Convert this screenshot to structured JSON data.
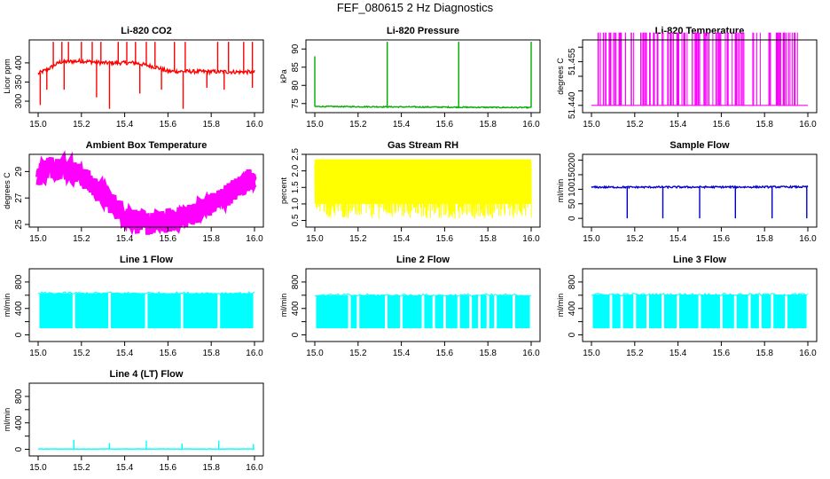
{
  "figure": {
    "title": "FEF_080615  2 Hz Diagnostics"
  },
  "chart_data": [
    {
      "id": "p1",
      "type": "line",
      "title": "Li-820 CO2",
      "ylabel": "Licor ppm",
      "color": "#ff0000",
      "xlim": [
        15.0,
        16.0
      ],
      "ylim": [
        270,
        460
      ],
      "xticks": [
        15.0,
        15.2,
        15.4,
        15.6,
        15.8,
        16.0
      ],
      "xtick_labels": [
        "15.0",
        "15.2",
        "15.4",
        "15.6",
        "15.8",
        "16.0"
      ],
      "yticks": [
        300,
        350,
        400
      ],
      "ytick_labels": [
        "300",
        "350",
        "400"
      ],
      "series": [
        {
          "name": "CO2",
          "baseline": 372,
          "noise": 5,
          "segments": [
            [
              15.0,
              372
            ],
            [
              15.05,
              385
            ],
            [
              15.1,
              402
            ],
            [
              15.2,
              405
            ],
            [
              15.3,
              400
            ],
            [
              15.45,
              400
            ],
            [
              15.55,
              388
            ],
            [
              15.6,
              378
            ],
            [
              15.62,
              378
            ],
            [
              16.0,
              376
            ]
          ],
          "spikes": [
            [
              15.07,
              455
            ],
            [
              15.11,
              455
            ],
            [
              15.14,
              455
            ],
            [
              15.2,
              455
            ],
            [
              15.25,
              455
            ],
            [
              15.29,
              455
            ],
            [
              15.37,
              455
            ],
            [
              15.41,
              455
            ],
            [
              15.45,
              455
            ],
            [
              15.5,
              455
            ],
            [
              15.54,
              455
            ],
            [
              15.63,
              455
            ],
            [
              15.68,
              455
            ],
            [
              15.83,
              455
            ],
            [
              15.88,
              455
            ],
            [
              15.95,
              455
            ],
            [
              15.99,
              455
            ],
            [
              15.01,
              290
            ],
            [
              15.04,
              330
            ],
            [
              15.12,
              330
            ],
            [
              15.27,
              310
            ],
            [
              15.33,
              280
            ],
            [
              15.47,
              320
            ],
            [
              15.57,
              330
            ],
            [
              15.67,
              280
            ],
            [
              15.78,
              335
            ],
            [
              15.86,
              330
            ],
            [
              15.99,
              335
            ]
          ]
        }
      ]
    },
    {
      "id": "p2",
      "type": "line",
      "title": "Li-820 Pressure",
      "ylabel": "kPa",
      "color": "#00aa00",
      "xlim": [
        15.0,
        16.0
      ],
      "ylim": [
        72.5,
        92.5
      ],
      "xticks": [
        15.0,
        15.2,
        15.4,
        15.6,
        15.8,
        16.0
      ],
      "xtick_labels": [
        "15.0",
        "15.2",
        "15.4",
        "15.6",
        "15.8",
        "16.0"
      ],
      "yticks": [
        75,
        80,
        85,
        90
      ],
      "ytick_labels": [
        "75",
        "80",
        "85",
        "90"
      ],
      "series": [
        {
          "name": "Pressure",
          "baseline": 74.1,
          "noise": 0.15,
          "segments": [
            [
              15.0,
              74.2
            ],
            [
              16.0,
              73.9
            ]
          ],
          "spikes": [
            [
              15.0,
              88
            ],
            [
              15.335,
              92
            ],
            [
              15.665,
              92
            ],
            [
              16.0,
              92
            ]
          ]
        }
      ]
    },
    {
      "id": "p3",
      "type": "line",
      "title": "Li-820 Temperature",
      "ylabel": "degrees C",
      "color": "#ff00ff",
      "xlim": [
        15.0,
        16.0
      ],
      "ylim": [
        51.4375,
        51.4625
      ],
      "xticks": [
        15.0,
        15.2,
        15.4,
        15.6,
        15.8,
        16.0
      ],
      "xtick_labels": [
        "15.0",
        "15.2",
        "15.4",
        "15.6",
        "15.8",
        "16.0"
      ],
      "yticks": [
        51.44,
        51.445,
        51.45,
        51.455,
        51.46
      ],
      "ytick_labels": [
        "51.440",
        "51.445",
        "51.450",
        "51.455",
        "51.460"
      ],
      "ytick_show": [
        true,
        false,
        false,
        true,
        false
      ],
      "series": [
        {
          "name": "Temperature",
          "low": 51.44,
          "high": 51.465,
          "mode": "binary",
          "density": 140
        }
      ]
    },
    {
      "id": "p4",
      "type": "line",
      "title": "Ambient Box Temperature",
      "ylabel": "degrees C",
      "color": "#ff00ff",
      "xlim": [
        15.0,
        16.0
      ],
      "ylim": [
        24.8,
        30.3
      ],
      "xticks": [
        15.0,
        15.2,
        15.4,
        15.6,
        15.8,
        16.0
      ],
      "xtick_labels": [
        "15.0",
        "15.2",
        "15.4",
        "15.6",
        "15.8",
        "16.0"
      ],
      "yticks": [
        25,
        27,
        29
      ],
      "ytick_labels": [
        "25",
        "27",
        "29"
      ],
      "series": [
        {
          "name": "Box Temp",
          "noise": 0.55,
          "segments": [
            [
              15.0,
              29.0
            ],
            [
              15.05,
              29.6
            ],
            [
              15.1,
              29.7
            ],
            [
              15.2,
              29.0
            ],
            [
              15.3,
              27.5
            ],
            [
              15.4,
              26.0
            ],
            [
              15.5,
              25.3
            ],
            [
              15.6,
              25.5
            ],
            [
              15.7,
              26.0
            ],
            [
              15.8,
              26.8
            ],
            [
              15.9,
              27.8
            ],
            [
              16.0,
              29.0
            ]
          ]
        }
      ]
    },
    {
      "id": "p5",
      "type": "line",
      "title": "Gas Stream RH",
      "ylabel": "percent",
      "color": "#ffff00",
      "xlim": [
        15.0,
        16.0
      ],
      "ylim": [
        0.3,
        2.5
      ],
      "xticks": [
        15.0,
        15.2,
        15.4,
        15.6,
        15.8,
        16.0
      ],
      "xtick_labels": [
        "15.0",
        "15.2",
        "15.4",
        "15.6",
        "15.8",
        "16.0"
      ],
      "yticks": [
        0.5,
        1.0,
        1.5,
        2.0,
        2.5
      ],
      "ytick_labels": [
        "0.5",
        "1.0",
        "1.5",
        "2.0",
        "2.5"
      ],
      "series": [
        {
          "name": "RH",
          "low": 0.55,
          "high": 2.35,
          "mode": "band",
          "density": 700
        }
      ]
    },
    {
      "id": "p6",
      "type": "line",
      "title": "Sample Flow",
      "ylabel": "ml/min",
      "color": "#0000cc",
      "xlim": [
        15.0,
        16.0
      ],
      "ylim": [
        -30,
        220
      ],
      "xticks": [
        15.0,
        15.2,
        15.4,
        15.6,
        15.8,
        16.0
      ],
      "xtick_labels": [
        "15.0",
        "15.2",
        "15.4",
        "15.6",
        "15.8",
        "16.0"
      ],
      "yticks": [
        0,
        50,
        100,
        150,
        200
      ],
      "ytick_labels": [
        "0",
        "50",
        "100",
        "150",
        "200"
      ],
      "series": [
        {
          "name": "Sample Flow",
          "baseline": 108,
          "noise": 3,
          "segments": [
            [
              15.0,
              107
            ],
            [
              16.0,
              108
            ]
          ],
          "spikes": [
            [
              15.165,
              0
            ],
            [
              15.33,
              0
            ],
            [
              15.5,
              0
            ],
            [
              15.665,
              0
            ],
            [
              15.835,
              0
            ],
            [
              15.995,
              0
            ]
          ]
        }
      ]
    },
    {
      "id": "p7",
      "type": "line",
      "title": "Line 1 Flow",
      "ylabel": "ml/min",
      "color": "#00ffff",
      "xlim": [
        15.0,
        16.0
      ],
      "ylim": [
        -100,
        1000
      ],
      "xticks": [
        15.0,
        15.2,
        15.4,
        15.6,
        15.8,
        16.0
      ],
      "xtick_labels": [
        "15.0",
        "15.2",
        "15.4",
        "15.6",
        "15.8",
        "16.0"
      ],
      "yticks": [
        0,
        200,
        400,
        600,
        800
      ],
      "ytick_labels": [
        "0",
        "400",
        "800"
      ],
      "ytick_labels_at": [
        0,
        400,
        800
      ],
      "series": [
        {
          "name": "Line 1",
          "low": 100,
          "high": 630,
          "mode": "block",
          "gaps": [
            15.165,
            15.33,
            15.5,
            15.665,
            15.835
          ]
        }
      ]
    },
    {
      "id": "p8",
      "type": "line",
      "title": "Line 2 Flow",
      "ylabel": "ml/min",
      "color": "#00ffff",
      "xlim": [
        15.0,
        16.0
      ],
      "ylim": [
        -100,
        1000
      ],
      "xticks": [
        15.0,
        15.2,
        15.4,
        15.6,
        15.8,
        16.0
      ],
      "xtick_labels": [
        "15.0",
        "15.2",
        "15.4",
        "15.6",
        "15.8",
        "16.0"
      ],
      "yticks": [
        0,
        200,
        400,
        600,
        800
      ],
      "ytick_labels": [
        "0",
        "400",
        "800"
      ],
      "ytick_labels_at": [
        0,
        400,
        800
      ],
      "series": [
        {
          "name": "Line 2",
          "low": 100,
          "high": 600,
          "mode": "block",
          "gaps": [
            15.16,
            15.2,
            15.33,
            15.4,
            15.5,
            15.55,
            15.6,
            15.665,
            15.72,
            15.76,
            15.8,
            15.835,
            15.92
          ]
        }
      ]
    },
    {
      "id": "p9",
      "type": "line",
      "title": "Line 3 Flow",
      "ylabel": "ml/min",
      "color": "#00ffff",
      "xlim": [
        15.0,
        16.0
      ],
      "ylim": [
        -100,
        1000
      ],
      "xticks": [
        15.0,
        15.2,
        15.4,
        15.6,
        15.8,
        16.0
      ],
      "xtick_labels": [
        "15.0",
        "15.2",
        "15.4",
        "15.6",
        "15.8",
        "16.0"
      ],
      "yticks": [
        0,
        200,
        400,
        600,
        800
      ],
      "ytick_labels": [
        "0",
        "400",
        "800"
      ],
      "ytick_labels_at": [
        0,
        400,
        800
      ],
      "series": [
        {
          "name": "Line 3",
          "low": 100,
          "high": 610,
          "mode": "block",
          "gaps": [
            15.09,
            15.14,
            15.2,
            15.26,
            15.33,
            15.4,
            15.5,
            15.6,
            15.665,
            15.73,
            15.78,
            15.835,
            15.9
          ]
        }
      ]
    },
    {
      "id": "p10",
      "type": "line",
      "title": "Line 4 (LT) Flow",
      "ylabel": "ml/min",
      "color": "#00ffff",
      "xlim": [
        15.0,
        16.0
      ],
      "ylim": [
        -100,
        1000
      ],
      "xticks": [
        15.0,
        15.2,
        15.4,
        15.6,
        15.8,
        16.0
      ],
      "xtick_labels": [
        "15.0",
        "15.2",
        "15.4",
        "15.6",
        "15.8",
        "16.0"
      ],
      "yticks": [
        0,
        200,
        400,
        600,
        800
      ],
      "ytick_labels": [
        "0",
        "400",
        "800"
      ],
      "ytick_labels_at": [
        0,
        400,
        800
      ],
      "series": [
        {
          "name": "Line 4",
          "baseline": 5,
          "noise": 3,
          "segments": [
            [
              15.0,
              5
            ],
            [
              16.0,
              5
            ]
          ],
          "spikes": [
            [
              15.165,
              145
            ],
            [
              15.33,
              95
            ],
            [
              15.5,
              130
            ],
            [
              15.665,
              90
            ],
            [
              15.835,
              130
            ],
            [
              15.995,
              80
            ]
          ]
        }
      ]
    }
  ]
}
